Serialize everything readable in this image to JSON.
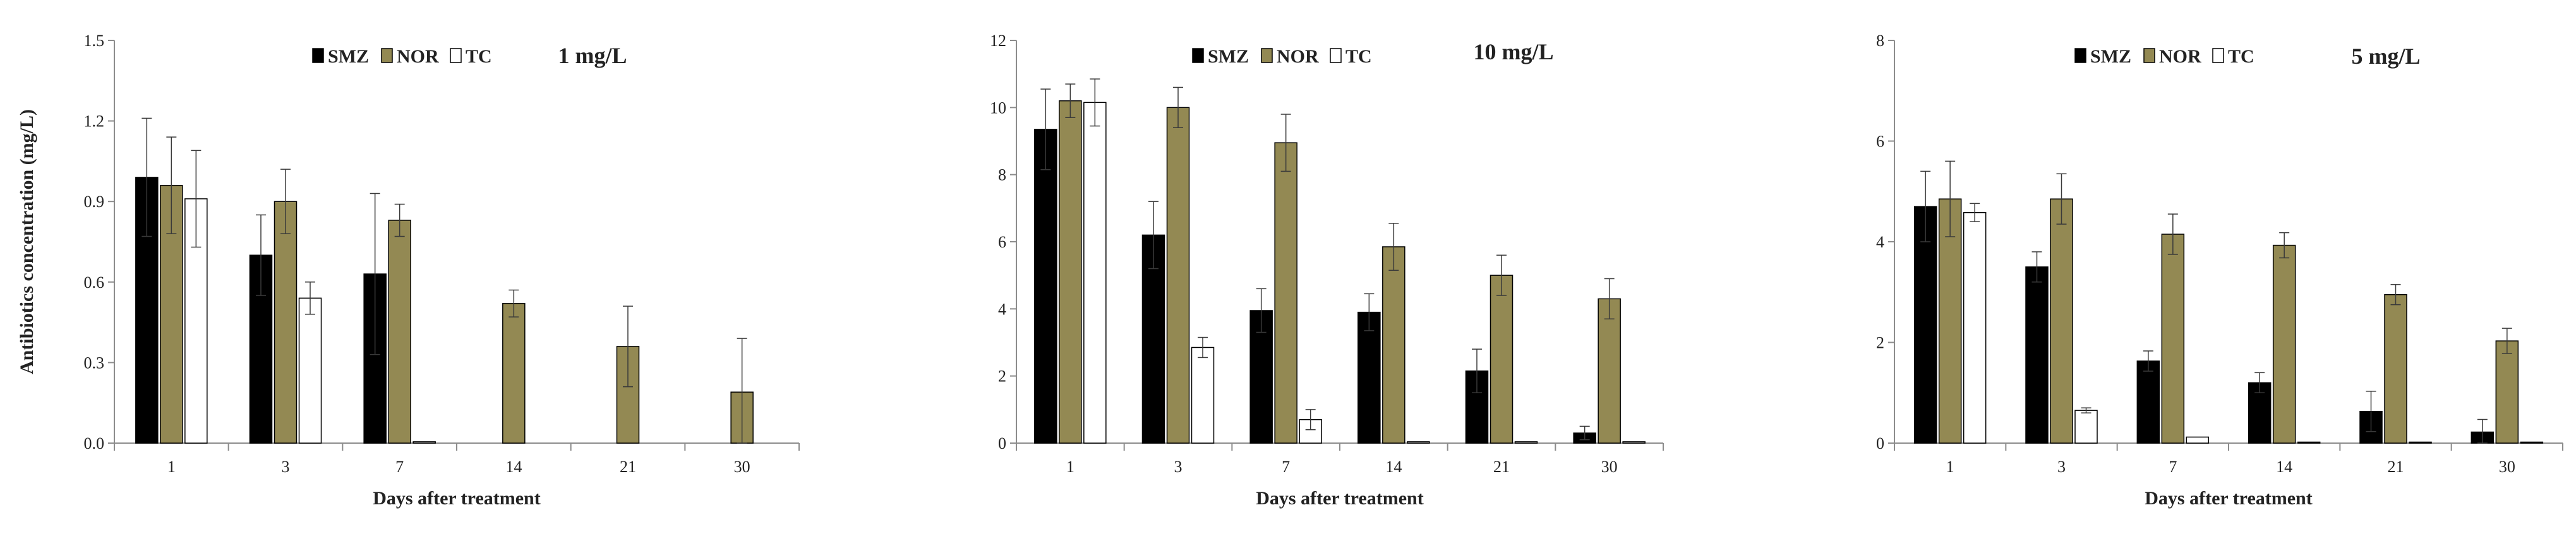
{
  "colors": {
    "SMZ": "#000000",
    "NOR": "#938953",
    "TC": "#ffffff",
    "axis": "#8c8c8c",
    "error": "#3a3a3a"
  },
  "chart_data": [
    {
      "type": "bar",
      "title": "1 mg/L",
      "xlabel": "Days after treatment",
      "ylabel": "Antibiotics concentration (mg/L)",
      "ylim": [
        0,
        1.5
      ],
      "yticks": [
        "0.0",
        "0.3",
        "0.6",
        "0.9",
        "1.2",
        "1.5"
      ],
      "categories": [
        "1",
        "3",
        "7",
        "14",
        "21",
        "30"
      ],
      "legend": [
        "SMZ",
        "NOR",
        "TC"
      ],
      "series": [
        {
          "name": "SMZ",
          "values": [
            0.99,
            0.7,
            0.63,
            null,
            null,
            null
          ],
          "errors": [
            0.22,
            0.15,
            0.3,
            null,
            null,
            null
          ]
        },
        {
          "name": "NOR",
          "values": [
            0.96,
            0.9,
            0.83,
            0.52,
            0.36,
            0.19
          ],
          "errors": [
            0.18,
            0.12,
            0.06,
            0.05,
            0.15,
            0.2
          ]
        },
        {
          "name": "TC",
          "values": [
            0.91,
            0.54,
            0.005,
            null,
            null,
            null
          ],
          "errors": [
            0.18,
            0.06,
            0,
            null,
            null,
            null
          ]
        }
      ]
    },
    {
      "type": "bar",
      "title": "10 mg/L",
      "xlabel": "Days after treatment",
      "ylabel": "",
      "ylim": [
        0,
        12
      ],
      "yticks": [
        "0",
        "2",
        "4",
        "6",
        "8",
        "10",
        "12"
      ],
      "categories": [
        "1",
        "3",
        "7",
        "14",
        "21",
        "30"
      ],
      "legend": [
        "SMZ",
        "NOR",
        "TC"
      ],
      "series": [
        {
          "name": "SMZ",
          "values": [
            9.35,
            6.2,
            3.95,
            3.9,
            2.15,
            0.3
          ],
          "errors": [
            1.2,
            1.0,
            0.65,
            0.55,
            0.65,
            0.2
          ]
        },
        {
          "name": "NOR",
          "values": [
            10.2,
            10.0,
            8.95,
            5.85,
            5.0,
            4.3
          ],
          "errors": [
            0.5,
            0.6,
            0.85,
            0.7,
            0.6,
            0.6
          ]
        },
        {
          "name": "TC",
          "values": [
            10.15,
            2.85,
            0.7,
            0.04,
            0.04,
            0.04
          ],
          "errors": [
            0.7,
            0.3,
            0.3,
            0,
            0,
            0
          ]
        }
      ]
    },
    {
      "type": "bar",
      "title": "5 mg/L",
      "xlabel": "Days after treatment",
      "ylabel": "",
      "ylim": [
        0,
        8
      ],
      "yticks": [
        "0",
        "2",
        "4",
        "6",
        "8"
      ],
      "categories": [
        "1",
        "3",
        "7",
        "14",
        "21",
        "30"
      ],
      "legend": [
        "SMZ",
        "NOR",
        "TC"
      ],
      "series": [
        {
          "name": "SMZ",
          "values": [
            4.7,
            3.5,
            1.63,
            1.2,
            0.63,
            0.22
          ],
          "errors": [
            0.7,
            0.3,
            0.2,
            0.2,
            0.4,
            0.25
          ]
        },
        {
          "name": "NOR",
          "values": [
            4.85,
            4.85,
            4.15,
            3.93,
            2.95,
            2.03
          ],
          "errors": [
            0.75,
            0.5,
            0.4,
            0.25,
            0.2,
            0.25
          ]
        },
        {
          "name": "TC",
          "values": [
            4.58,
            0.65,
            0.12,
            0.02,
            0.02,
            0.02
          ],
          "errors": [
            0.18,
            0.05,
            0,
            0,
            0,
            0
          ]
        }
      ]
    }
  ]
}
